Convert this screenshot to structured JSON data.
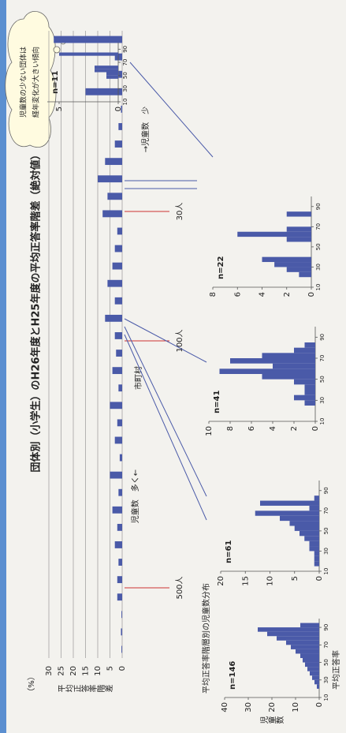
{
  "chart_data": [
    {
      "type": "bar",
      "title": "団体別（小学生）のH26年度とH25年度の平均正答率階差（絶対値）",
      "unit_label": "（%）",
      "y_label": "平均正答率階差",
      "values": [
        0.3,
        0.5,
        0.3,
        2,
        2,
        1.5,
        3,
        2,
        4,
        1.5,
        5,
        1,
        3,
        2,
        5,
        1.5,
        4,
        2.5,
        3,
        7,
        3,
        6,
        4,
        3,
        2,
        8,
        6,
        10,
        7,
        3,
        1.5,
        0.5,
        15,
        1.5,
        3,
        28
      ],
      "color": "#4a5aa8",
      "ylim": [
        0,
        30
      ],
      "yticks": [
        0,
        5,
        10,
        15,
        20,
        25,
        30
      ],
      "grid": true,
      "annotations": [
        "児童数　多く←",
        "市町村",
        "→児童数　少"
      ],
      "threshold_labels": [
        "500人",
        "100人",
        "30人"
      ]
    },
    {
      "type": "histogram",
      "title": "n=146",
      "x_label": "平均正答率",
      "y_label": "児童数",
      "color": "#4a5aa8",
      "bins": [
        10,
        15,
        20,
        25,
        30,
        35,
        40,
        45,
        50,
        55,
        60,
        65,
        70,
        75,
        80,
        85,
        90,
        95,
        100
      ],
      "values": [
        0,
        0,
        1,
        2,
        3,
        4,
        5,
        6,
        7,
        8,
        10,
        12,
        14,
        18,
        22,
        26,
        8,
        0
      ],
      "xlim": [
        10,
        100
      ],
      "xticks": [
        10,
        30,
        50,
        70,
        90
      ],
      "ylim": [
        0,
        40
      ],
      "yticks": [
        0,
        10,
        20,
        30,
        40
      ]
    },
    {
      "type": "histogram",
      "title": "n=61",
      "color": "#4a5aa8",
      "bins": [
        10,
        15,
        20,
        25,
        30,
        35,
        40,
        45,
        50,
        55,
        60,
        65,
        70,
        75,
        80,
        85,
        90,
        95,
        100
      ],
      "values": [
        0,
        1,
        1,
        1,
        2,
        2,
        3,
        4,
        5,
        6,
        8,
        13,
        2,
        12,
        1,
        0,
        0,
        0
      ],
      "xlim": [
        10,
        100
      ],
      "xticks": [
        10,
        30,
        50,
        70,
        90
      ],
      "ylim": [
        0,
        20
      ],
      "yticks": [
        0,
        5,
        10,
        15,
        20
      ]
    },
    {
      "type": "histogram",
      "title": "n=41",
      "color": "#4a5aa8",
      "bins": [
        10,
        15,
        20,
        25,
        30,
        35,
        40,
        45,
        50,
        55,
        60,
        65,
        70,
        75,
        80,
        85,
        90,
        95,
        100
      ],
      "values": [
        0,
        0,
        0,
        1,
        2,
        1,
        1,
        2,
        5,
        9,
        4,
        8,
        5,
        2,
        1,
        0,
        0,
        0
      ],
      "xlim": [
        10,
        100
      ],
      "xticks": [
        10,
        30,
        50,
        70,
        90
      ],
      "ylim": [
        0,
        10
      ],
      "yticks": [
        0,
        2,
        4,
        6,
        8,
        10
      ]
    },
    {
      "type": "histogram",
      "title": "n=22",
      "color": "#4a5aa8",
      "bins": [
        10,
        15,
        20,
        25,
        30,
        35,
        40,
        45,
        50,
        55,
        60,
        65,
        70,
        75,
        80,
        85,
        90,
        95,
        100
      ],
      "values": [
        0,
        0,
        1,
        2,
        3,
        4,
        0,
        0,
        0,
        2,
        6,
        2,
        0,
        0,
        2,
        0,
        0,
        0
      ],
      "xlim": [
        10,
        100
      ],
      "xticks": [
        10,
        30,
        50,
        70,
        90
      ],
      "ylim": [
        0,
        8
      ],
      "yticks": [
        0,
        2,
        4,
        6,
        8
      ]
    },
    {
      "type": "histogram",
      "title": "n=11",
      "color": "#4a5aa8",
      "bins": [
        10,
        15,
        20,
        25,
        30,
        35,
        40,
        45,
        50,
        55,
        60,
        65,
        70,
        75,
        80,
        85,
        90,
        95,
        100
      ],
      "values": [
        0,
        0,
        0,
        0,
        0,
        0,
        0,
        1,
        1,
        2,
        2,
        0,
        0,
        0,
        5,
        0,
        0,
        0
      ],
      "xlim": [
        10,
        100
      ],
      "xticks": [
        10,
        30,
        50,
        70,
        90
      ],
      "ylim": [
        0,
        6
      ],
      "yticks": [
        0,
        5
      ]
    }
  ],
  "section_title": "平均正答率階層別の児童数分布",
  "callout": [
    "児童数の少ない団体は",
    "経年変化が大きい傾向"
  ]
}
